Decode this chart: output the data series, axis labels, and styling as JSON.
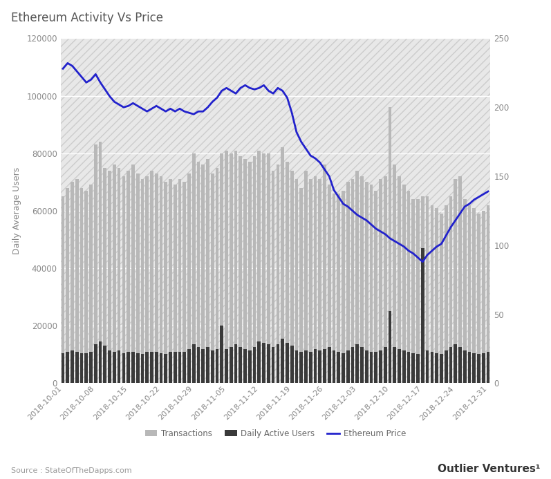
{
  "title": "Ethereum Activity Vs Price",
  "source": "Source : StateOfTheDapps.com",
  "brand": "Outlier Ventures¹",
  "ylabel_left": "Daily Average Users",
  "ylim_left": [
    0,
    120000
  ],
  "ylim_right": [
    0,
    250
  ],
  "yticks_left": [
    0,
    20000,
    40000,
    60000,
    80000,
    100000,
    120000
  ],
  "yticks_right": [
    0,
    50,
    100,
    150,
    200,
    250
  ],
  "fig_bg_color": "#ffffff",
  "plot_bg_color": "#e8e8e8",
  "hatch_color": "#d0d0d0",
  "grid_color": "#ffffff",
  "bar_color_transactions": "#b8b8b8",
  "bar_color_users": "#3a3a3a",
  "line_color_price": "#2222cc",
  "dates": [
    "2018-10-01",
    "2018-10-02",
    "2018-10-03",
    "2018-10-04",
    "2018-10-05",
    "2018-10-06",
    "2018-10-07",
    "2018-10-08",
    "2018-10-09",
    "2018-10-10",
    "2018-10-11",
    "2018-10-12",
    "2018-10-13",
    "2018-10-14",
    "2018-10-15",
    "2018-10-16",
    "2018-10-17",
    "2018-10-18",
    "2018-10-19",
    "2018-10-20",
    "2018-10-21",
    "2018-10-22",
    "2018-10-23",
    "2018-10-24",
    "2018-10-25",
    "2018-10-26",
    "2018-10-27",
    "2018-10-28",
    "2018-10-29",
    "2018-10-30",
    "2018-10-31",
    "2018-11-01",
    "2018-11-02",
    "2018-11-03",
    "2018-11-04",
    "2018-11-05",
    "2018-11-06",
    "2018-11-07",
    "2018-11-08",
    "2018-11-09",
    "2018-11-10",
    "2018-11-11",
    "2018-11-12",
    "2018-11-13",
    "2018-11-14",
    "2018-11-15",
    "2018-11-16",
    "2018-11-17",
    "2018-11-18",
    "2018-11-19",
    "2018-11-20",
    "2018-11-21",
    "2018-11-22",
    "2018-11-23",
    "2018-11-24",
    "2018-11-25",
    "2018-11-26",
    "2018-11-27",
    "2018-11-28",
    "2018-11-29",
    "2018-11-30",
    "2018-12-01",
    "2018-12-02",
    "2018-12-03",
    "2018-12-04",
    "2018-12-05",
    "2018-12-06",
    "2018-12-07",
    "2018-12-08",
    "2018-12-09",
    "2018-12-10",
    "2018-12-11",
    "2018-12-12",
    "2018-12-13",
    "2018-12-14",
    "2018-12-15",
    "2018-12-16",
    "2018-12-17",
    "2018-12-18",
    "2018-12-19",
    "2018-12-20",
    "2018-12-21",
    "2018-12-22",
    "2018-12-23",
    "2018-12-24",
    "2018-12-25",
    "2018-12-26",
    "2018-12-27",
    "2018-12-28",
    "2018-12-29",
    "2018-12-30",
    "2018-12-31"
  ],
  "transactions": [
    65000,
    68000,
    70000,
    71000,
    68000,
    67000,
    69000,
    83000,
    84000,
    75000,
    74000,
    76000,
    75000,
    72000,
    74000,
    76000,
    73000,
    71000,
    72000,
    74000,
    73000,
    72000,
    70000,
    71000,
    69000,
    71000,
    70000,
    73000,
    80000,
    77000,
    76000,
    78000,
    73000,
    75000,
    80000,
    81000,
    80000,
    81000,
    79000,
    78000,
    77000,
    79000,
    81000,
    80000,
    80000,
    74000,
    76000,
    82000,
    77000,
    74000,
    71000,
    68000,
    74000,
    71000,
    72000,
    71000,
    76000,
    69000,
    66000,
    66000,
    67000,
    70000,
    71000,
    74000,
    72000,
    70000,
    69000,
    67000,
    71000,
    72000,
    96000,
    76000,
    72000,
    69000,
    67000,
    64000,
    64000,
    65000,
    65000,
    62000,
    61000,
    59000,
    62000,
    65000,
    71000,
    72000,
    64000,
    62000,
    61000,
    59000,
    60000,
    62000
  ],
  "daily_active_users": [
    10500,
    11000,
    11500,
    11000,
    10500,
    10500,
    11000,
    13500,
    14500,
    13000,
    11500,
    11000,
    11500,
    10500,
    11000,
    10800,
    10500,
    10200,
    10800,
    11000,
    11000,
    10500,
    10200,
    11000,
    10800,
    11000,
    10800,
    12000,
    13500,
    12500,
    12000,
    12500,
    11500,
    12000,
    20000,
    12000,
    12500,
    13500,
    12500,
    12000,
    11500,
    12500,
    14500,
    14000,
    13500,
    12500,
    13500,
    15500,
    14000,
    13000,
    11500,
    11000,
    11500,
    11000,
    12000,
    11500,
    12000,
    12500,
    11500,
    11000,
    10500,
    11500,
    12500,
    13500,
    12500,
    11500,
    11000,
    11000,
    11500,
    12500,
    25000,
    12500,
    12000,
    11500,
    11000,
    10500,
    10200,
    47000,
    11500,
    11000,
    10500,
    10200,
    11500,
    12500,
    13500,
    12500,
    11500,
    11000,
    10500,
    10200,
    10500,
    11000
  ],
  "eth_price": [
    228,
    232,
    230,
    226,
    222,
    218,
    220,
    224,
    218,
    213,
    208,
    204,
    202,
    200,
    201,
    203,
    201,
    199,
    197,
    199,
    201,
    199,
    197,
    199,
    197,
    199,
    197,
    196,
    195,
    197,
    197,
    200,
    204,
    207,
    212,
    214,
    212,
    210,
    214,
    216,
    214,
    213,
    214,
    216,
    212,
    210,
    214,
    212,
    207,
    196,
    182,
    175,
    170,
    165,
    163,
    160,
    155,
    150,
    140,
    135,
    130,
    128,
    125,
    122,
    120,
    118,
    115,
    112,
    110,
    108,
    105,
    103,
    101,
    99,
    96,
    94,
    91,
    88,
    93,
    96,
    99,
    101,
    107,
    113,
    118,
    123,
    128,
    130,
    133,
    135,
    137,
    139
  ],
  "xtick_labels": [
    "2018-10-01",
    "2018-10-08",
    "2018-10-15",
    "2018-10-22",
    "2018-10-29",
    "2018-11-05",
    "2018-11-12",
    "2018-11-19",
    "2018-11-26",
    "2018-12-03",
    "2018-12-10",
    "2018-12-17",
    "2018-12-24",
    "2018-12-31"
  ],
  "xtick_positions": [
    0,
    7,
    14,
    21,
    28,
    35,
    42,
    49,
    56,
    63,
    70,
    77,
    84,
    91
  ]
}
